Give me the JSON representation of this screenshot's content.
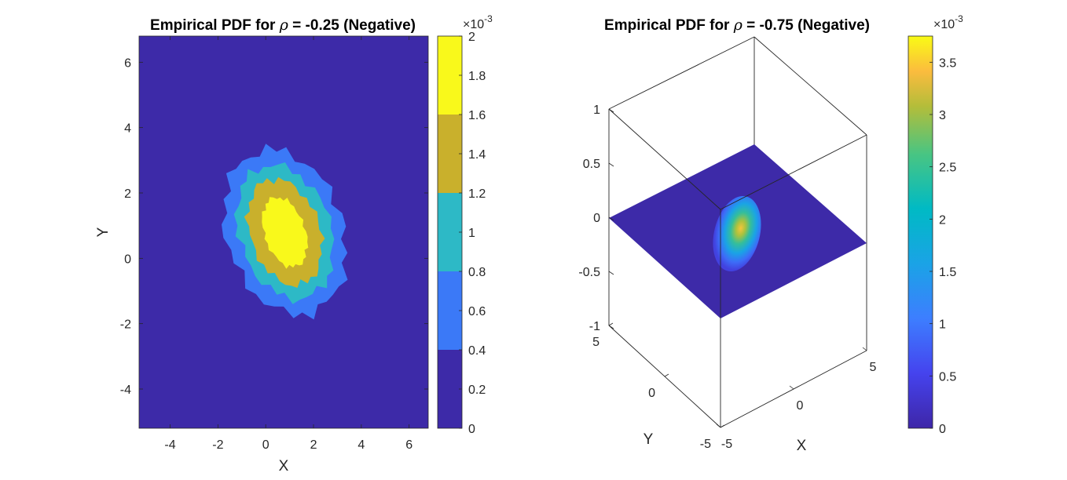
{
  "chart_data": [
    {
      "type": "contour",
      "title_prefix": "Empirical PDF for ",
      "title_symbol": "ρ",
      "title_suffix": " = -0.25 (Negative)",
      "xlabel": "X",
      "ylabel": "Y",
      "xlim": [
        -5.3,
        6.8
      ],
      "ylim": [
        -5.2,
        6.8
      ],
      "xticks": [
        "-4",
        "-2",
        "0",
        "2",
        "4",
        "6"
      ],
      "yticks": [
        "-4",
        "-2",
        "0",
        "2",
        "4",
        "6"
      ],
      "center": [
        0.8,
        0.8
      ],
      "contour_levels": [
        0,
        0.4,
        0.8,
        1.2,
        1.6
      ],
      "colorbar": {
        "range": [
          0,
          2
        ],
        "ticks": [
          "0",
          "0.2",
          "0.4",
          "0.6",
          "0.8",
          "1",
          "1.2",
          "1.4",
          "1.6",
          "1.8",
          "2"
        ],
        "exponent_base": "×10",
        "exponent_power": "-3"
      }
    },
    {
      "type": "surface3d",
      "title_prefix": "Empirical PDF for ",
      "title_symbol": "ρ",
      "title_suffix": " = -0.75 (Negative)",
      "xlabel": "X",
      "ylabel": "Y",
      "zlim": [
        -1,
        1
      ],
      "xticks": [
        "-5",
        "0",
        "5"
      ],
      "yticks": [
        "-5",
        "0",
        "5"
      ],
      "zticks": [
        "-1",
        "-0.5",
        "0",
        "0.5",
        "1"
      ],
      "peak": 0.0037,
      "colorbar": {
        "range": [
          0,
          3.75
        ],
        "ticks": [
          "0",
          "0.5",
          "1",
          "1.5",
          "2",
          "2.5",
          "3",
          "3.5"
        ],
        "exponent_base": "×10",
        "exponent_power": "-3"
      }
    }
  ]
}
